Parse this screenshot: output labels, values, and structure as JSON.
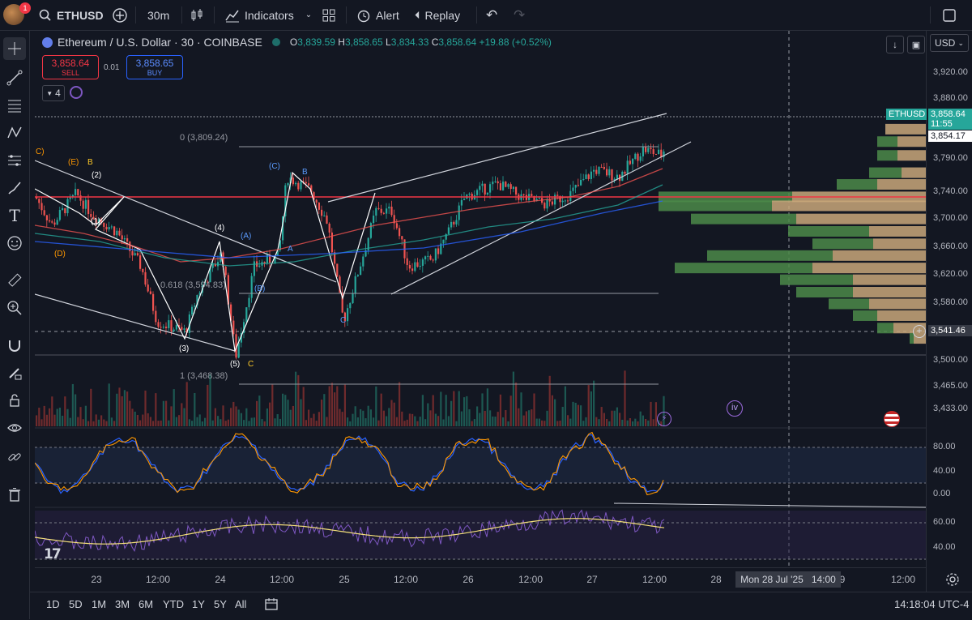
{
  "topbar": {
    "symbol": "ETHUSD",
    "interval": "30m",
    "indicators_label": "Indicators",
    "alert_label": "Alert",
    "replay_label": "Replay",
    "notification_count": "1"
  },
  "legend": {
    "title": "Ethereum / U.S. Dollar · 30 · COINBASE",
    "o_label": "O",
    "o_value": "3,839.59",
    "h_label": "H",
    "h_value": "3,858.65",
    "l_label": "L",
    "l_value": "3,834.33",
    "c_label": "C",
    "c_value": "3,858.64",
    "change": "+19.88 (+0.52%)",
    "sell_price": "3,858.64",
    "sell_label": "SELL",
    "spread": "0.01",
    "buy_price": "3,858.65",
    "buy_label": "BUY",
    "indicator_count": "4"
  },
  "currency": "USD",
  "price_axis": {
    "ticks": [
      "3,920.00",
      "3,880.00",
      "3,790.00",
      "3,740.00",
      "3,700.00",
      "3,660.00",
      "3,620.00",
      "3,580.00",
      "3,500.00",
      "3,465.00",
      "3,433.00"
    ],
    "symbol_tag": "ETHUSD",
    "last_price": "3,858.64",
    "countdown": "11:55",
    "marker_price": "3,854.17",
    "crosshair_price": "3,541.46",
    "osc1_ticks": [
      "80.00",
      "40.00",
      "0.00"
    ],
    "osc2_ticks": [
      "60.00",
      "40.00"
    ]
  },
  "time_axis": {
    "ticks": [
      "23",
      "12:00",
      "24",
      "12:00",
      "25",
      "12:00",
      "26",
      "12:00",
      "27",
      "12:00",
      "28",
      "9",
      "12:00"
    ],
    "crosshair_label": "Mon 28 Jul '25   14:00"
  },
  "annotations": {
    "fib_0": "0 (3,809.24)",
    "fib_618": "0.618 (3,594.83)",
    "fib_1": "1 (3,468.38)",
    "waves": [
      "C)",
      "(E)",
      "B",
      "(2)",
      "(1)",
      "(D)",
      "(3)",
      "(4)",
      "(A)",
      "(5)",
      "C",
      "(C)",
      "B",
      "A",
      "(B)",
      "C"
    ],
    "event_iv": "iv"
  },
  "bottombar": {
    "ranges": [
      "1D",
      "5D",
      "1M",
      "3M",
      "6M",
      "YTD",
      "1Y",
      "5Y",
      "All"
    ],
    "clock": "14:18:04 UTC-4"
  },
  "colors": {
    "background": "#131722",
    "up": "#26a69a",
    "down": "#ef5350",
    "resistance": "#f23645",
    "accent": "#2962ff"
  }
}
